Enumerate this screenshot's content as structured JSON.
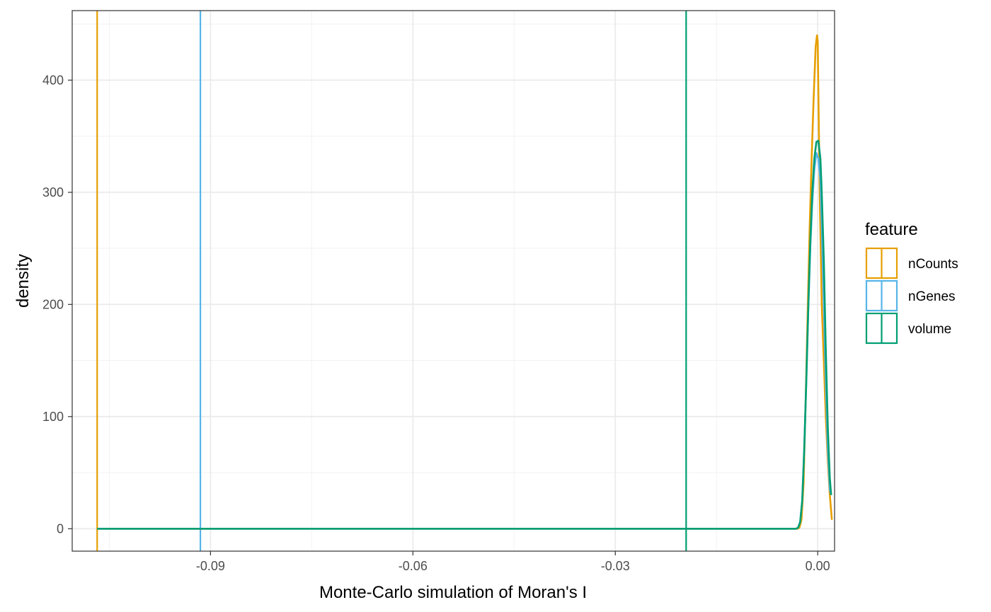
{
  "chart_data": {
    "type": "line",
    "title": "",
    "xlabel": "Monte-Carlo simulation of Moran's I",
    "ylabel": "density",
    "xlim": [
      -0.1105,
      0.0025
    ],
    "ylim": [
      -20,
      462
    ],
    "x_ticks": [
      -0.09,
      -0.06,
      -0.03,
      0.0
    ],
    "x_tick_labels": [
      "-0.09",
      "-0.06",
      "-0.03",
      "0.00"
    ],
    "x_minor_ticks": [
      -0.105,
      -0.075,
      -0.045,
      -0.015
    ],
    "y_ticks": [
      0,
      100,
      200,
      300,
      400
    ],
    "y_tick_labels": [
      "0",
      "100",
      "200",
      "300",
      "400"
    ],
    "y_minor_ticks": [
      50,
      150,
      250,
      350,
      450
    ],
    "grid": true,
    "legend": {
      "title": "feature",
      "position": "right"
    },
    "series": [
      {
        "name": "nCounts",
        "color": "#E69F00",
        "observed": -0.1068,
        "x": [
          -0.1068,
          -0.003,
          -0.0027,
          -0.0024,
          -0.0021,
          -0.0018,
          -0.0015,
          -0.0012,
          -0.0009,
          -0.0006,
          -0.0003,
          -0.0001,
          0.0,
          0.0001,
          0.0003,
          0.0006,
          0.0009,
          0.0012,
          0.0015,
          0.0018,
          0.0021
        ],
        "y": [
          0,
          0,
          1,
          8,
          40,
          110,
          190,
          265,
          330,
          385,
          430,
          440,
          435,
          390,
          300,
          200,
          150,
          100,
          60,
          30,
          8
        ]
      },
      {
        "name": "nGenes",
        "color": "#56B4E9",
        "observed": -0.0915,
        "x": [
          -0.1068,
          -0.0032,
          -0.0029,
          -0.0026,
          -0.0023,
          -0.002,
          -0.0017,
          -0.0014,
          -0.0011,
          -0.0008,
          -0.0005,
          -0.0002,
          0.0001,
          0.0004,
          0.0006,
          0.0009,
          0.0012,
          0.0015,
          0.0018,
          0.002
        ],
        "y": [
          0,
          0,
          1,
          6,
          25,
          70,
          130,
          195,
          250,
          290,
          320,
          335,
          330,
          310,
          270,
          200,
          130,
          70,
          35,
          30
        ]
      },
      {
        "name": "volume",
        "color": "#009E73",
        "observed": -0.0195,
        "x": [
          -0.1068,
          -0.0032,
          -0.0029,
          -0.0026,
          -0.0023,
          -0.002,
          -0.0017,
          -0.0014,
          -0.0011,
          -0.0008,
          -0.0005,
          -0.0002,
          0.0001,
          0.0004,
          0.0006,
          0.0009,
          0.0012,
          0.0015,
          0.0018,
          0.002
        ],
        "y": [
          0,
          0,
          1,
          6,
          25,
          70,
          130,
          195,
          255,
          300,
          330,
          345,
          346,
          330,
          300,
          240,
          160,
          90,
          45,
          30
        ]
      }
    ]
  }
}
